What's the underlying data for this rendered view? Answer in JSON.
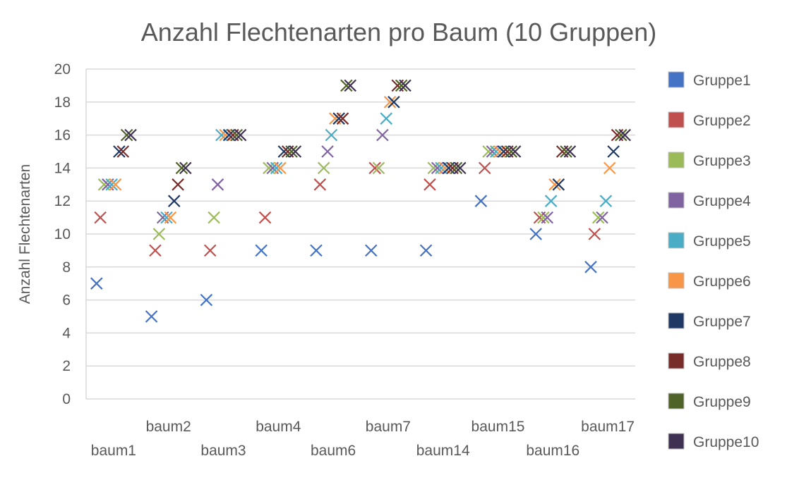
{
  "chart_data": {
    "type": "scatter",
    "title": "Anzahl Flechtenarten pro Baum (10 Gruppen)",
    "xlabel": "",
    "ylabel": "Anzahl Flechtenarten",
    "ylim": [
      0,
      20
    ],
    "yticks": [
      0,
      2,
      4,
      6,
      8,
      10,
      12,
      14,
      16,
      18,
      20
    ],
    "grid": true,
    "legend_position": "right",
    "categories": [
      "baum1",
      "baum2",
      "baum3",
      "baum4",
      "baum6",
      "baum7",
      "baum14",
      "baum15",
      "baum16",
      "baum17"
    ],
    "series": [
      {
        "name": "Gruppe1",
        "color": "#4472c4",
        "values": [
          7,
          5,
          6,
          9,
          9,
          9,
          9,
          12,
          10,
          8
        ]
      },
      {
        "name": "Gruppe2",
        "color": "#c0504d",
        "values": [
          11,
          9,
          9,
          11,
          13,
          14,
          13,
          14,
          11,
          10
        ]
      },
      {
        "name": "Gruppe3",
        "color": "#9bbb59",
        "values": [
          13,
          10,
          11,
          14,
          14,
          14,
          14,
          15,
          11,
          11
        ]
      },
      {
        "name": "Gruppe4",
        "color": "#8064a2",
        "values": [
          13,
          11,
          13,
          14,
          15,
          16,
          14,
          15,
          11,
          11
        ]
      },
      {
        "name": "Gruppe5",
        "color": "#4bacc6",
        "values": [
          13,
          11,
          16,
          14,
          16,
          17,
          14,
          15,
          12,
          12
        ]
      },
      {
        "name": "Gruppe6",
        "color": "#f79646",
        "values": [
          13,
          11,
          16,
          14,
          17,
          18,
          14,
          15,
          13,
          14
        ]
      },
      {
        "name": "Gruppe7",
        "color": "#1f3864",
        "values": [
          15,
          12,
          16,
          15,
          17,
          18,
          14,
          15,
          13,
          15
        ]
      },
      {
        "name": "Gruppe8",
        "color": "#772c2a",
        "values": [
          15,
          13,
          16,
          15,
          17,
          19,
          14,
          15,
          15,
          16
        ]
      },
      {
        "name": "Gruppe9",
        "color": "#4f6228",
        "values": [
          16,
          14,
          16,
          15,
          19,
          19,
          14,
          15,
          15,
          16
        ]
      },
      {
        "name": "Gruppe10",
        "color": "#3f3151",
        "values": [
          16,
          14,
          16,
          15,
          19,
          19,
          14,
          15,
          15,
          16
        ]
      }
    ]
  }
}
